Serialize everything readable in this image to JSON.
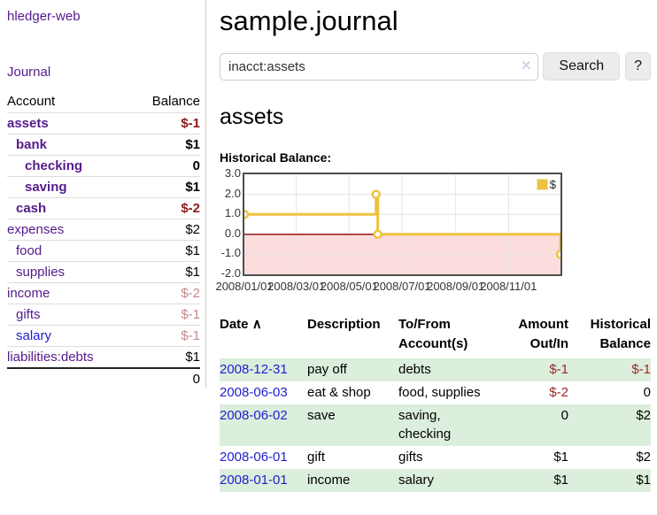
{
  "app": {
    "title": "hledger-web",
    "nav_journal": "Journal"
  },
  "sidebar": {
    "accounts_header": {
      "account": "Account",
      "balance": "Balance"
    },
    "accounts": [
      {
        "name": "assets",
        "depth": 1,
        "balance": "$-1",
        "bold": true,
        "neg": "dark",
        "blue": false
      },
      {
        "name": "bank",
        "depth": 2,
        "balance": "$1",
        "bold": true,
        "neg": "none",
        "blue": false
      },
      {
        "name": "checking",
        "depth": 3,
        "balance": "0",
        "bold": true,
        "neg": "none",
        "blue": false
      },
      {
        "name": "saving",
        "depth": 3,
        "balance": "$1",
        "bold": true,
        "neg": "none",
        "blue": false
      },
      {
        "name": "cash",
        "depth": 2,
        "balance": "$-2",
        "bold": true,
        "neg": "dark",
        "blue": false
      },
      {
        "name": "expenses",
        "depth": 1,
        "balance": "$2",
        "bold": false,
        "neg": "none",
        "blue": false
      },
      {
        "name": "food",
        "depth": 2,
        "balance": "$1",
        "bold": false,
        "neg": "none",
        "blue": false
      },
      {
        "name": "supplies",
        "depth": 2,
        "balance": "$1",
        "bold": false,
        "neg": "none",
        "blue": false
      },
      {
        "name": "income",
        "depth": 1,
        "balance": "$-2",
        "bold": false,
        "neg": "light",
        "blue": false
      },
      {
        "name": "gifts",
        "depth": 2,
        "balance": "$-1",
        "bold": false,
        "neg": "light",
        "blue": false
      },
      {
        "name": "salary",
        "depth": 2,
        "balance": "$-1",
        "bold": false,
        "neg": "light",
        "blue": true
      },
      {
        "name": "liabilities:debts",
        "depth": 1,
        "balance": "$1",
        "bold": false,
        "neg": "none",
        "blue": false
      }
    ],
    "total": "0"
  },
  "header": {
    "title": "sample.journal"
  },
  "search": {
    "value": "inacct:assets",
    "clear_icon": "✕",
    "button": "Search",
    "help_button": "?"
  },
  "account_page": {
    "title": "assets",
    "chart_label": "Historical Balance:"
  },
  "chart_data": {
    "type": "line",
    "title": "Historical Balance",
    "legend": "$",
    "legend_position": "top-right",
    "grid": true,
    "ylim": [
      -2,
      3
    ],
    "y_ticks": [
      3.0,
      2.0,
      1.0,
      0.0,
      -1.0,
      -2.0
    ],
    "x_range_days": 365,
    "x_ticks": [
      {
        "day": 0,
        "label": "2008/01/01"
      },
      {
        "day": 60,
        "label": "2008/03/01"
      },
      {
        "day": 121,
        "label": "2008/05/01"
      },
      {
        "day": 182,
        "label": "2008/07/01"
      },
      {
        "day": 244,
        "label": "2008/09/01"
      },
      {
        "day": 305,
        "label": "2008/11/01"
      }
    ],
    "series": [
      {
        "name": "$",
        "color": "#edc240",
        "step": true,
        "points": [
          {
            "date": "2008-01-01",
            "day": 0,
            "value": 1
          },
          {
            "date": "2008-06-01",
            "day": 152,
            "value": 2
          },
          {
            "date": "2008-06-03",
            "day": 154,
            "value": 0
          },
          {
            "date": "2008-12-31",
            "day": 365,
            "value": -1
          }
        ]
      }
    ],
    "negative_region_color": "#fcdddd",
    "zero_line_color": "#8b0000",
    "border_color": "#4d4d4d",
    "grid_color": "#e3e3e3"
  },
  "register": {
    "sort_icon": "∧",
    "columns": [
      {
        "label": "Date"
      },
      {
        "label": "Description"
      },
      {
        "label": "To/From Account(s)"
      },
      {
        "label": "Amount Out/In"
      },
      {
        "label": "Historical Balance"
      }
    ],
    "rows": [
      {
        "date": "2008-12-31",
        "description": "pay off",
        "accounts": "debts",
        "amount": "$-1",
        "amount_neg": true,
        "balance": "$-1",
        "balance_neg": true
      },
      {
        "date": "2008-06-03",
        "description": "eat & shop",
        "accounts": "food, supplies",
        "amount": "$-2",
        "amount_neg": true,
        "balance": "0",
        "balance_neg": false
      },
      {
        "date": "2008-06-02",
        "description": "save",
        "accounts": "saving,\nchecking",
        "amount": "0",
        "amount_neg": false,
        "balance": "$2",
        "balance_neg": false
      },
      {
        "date": "2008-06-01",
        "description": "gift",
        "accounts": "gifts",
        "amount": "$1",
        "amount_neg": false,
        "balance": "$2",
        "balance_neg": false
      },
      {
        "date": "2008-01-01",
        "description": "income",
        "accounts": "salary",
        "amount": "$1",
        "amount_neg": false,
        "balance": "$1",
        "balance_neg": false
      }
    ]
  }
}
